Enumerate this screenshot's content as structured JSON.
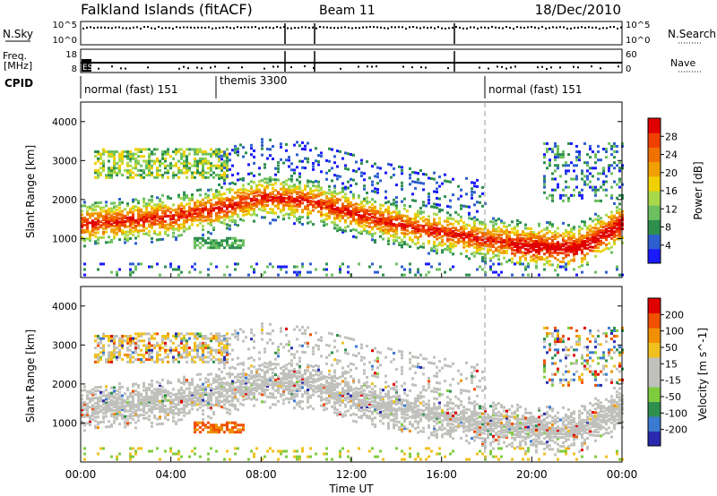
{
  "header": {
    "station": "Falkland Islands (fitACF)",
    "beam": "Beam 11",
    "date": "18/Dec/2010"
  },
  "strip_labels": {
    "nsky": "N.Sky",
    "nsky_top": "10^5",
    "nsky_bottom": "10^0",
    "nsearch": "N.Search",
    "nsearch_top": "10^5",
    "nsearch_bottom": "10^0",
    "freq": "Freq.",
    "freq_unit": "[MHz]",
    "freq_top": "18",
    "freq_bottom": "8",
    "nave": "Nave",
    "nave_top": "60",
    "nave_bottom": "0",
    "cpid": "CPID",
    "cpid_marker": "ES",
    "modes": [
      "normal (fast) 151",
      "themis 3300",
      "normal (fast) 151"
    ]
  },
  "colors": {
    "power_scale": [
      "#1a1aff",
      "#2d5fcf",
      "#2e8f4f",
      "#6cc060",
      "#a9d84a",
      "#f0d000",
      "#f0a000",
      "#f07000",
      "#f04000",
      "#e00000"
    ],
    "velocity_scale": [
      "#2a2ab0",
      "#3a7ad0",
      "#2e8f4f",
      "#80cc40",
      "#c0c0bc",
      "#c0c0bc",
      "#f0c020",
      "#f09000",
      "#f05000",
      "#e00000"
    ],
    "scatter_gray": "#c0c0bc"
  },
  "chart_data": [
    {
      "type": "heatmap",
      "title": "",
      "ylabel": "Slant Range [km]",
      "xlabel": "",
      "ylim": [
        0,
        4500
      ],
      "yticks": [
        "1000",
        "2000",
        "3000",
        "4000"
      ],
      "colorbar": {
        "label": "Power [dB]",
        "ticks": [
          "4",
          "8",
          "12",
          "16",
          "20",
          "24",
          "28"
        ]
      },
      "bands": [
        {
          "name": "main",
          "x": [
            0,
            2,
            4,
            6,
            8,
            10,
            12,
            14,
            16,
            18,
            20,
            22,
            24
          ],
          "center": [
            1400,
            1500,
            1600,
            1800,
            2100,
            2000,
            1700,
            1400,
            1200,
            1000,
            900,
            850,
            1500
          ]
        },
        {
          "name": "upper",
          "x": [
            1,
            3,
            5
          ],
          "center": [
            3100,
            3000,
            2900
          ]
        },
        {
          "name": "lower_patch",
          "x": [
            5,
            7
          ],
          "center": [
            950,
            950
          ]
        }
      ]
    },
    {
      "type": "heatmap",
      "title": "",
      "ylabel": "Slant Range [km]",
      "xlabel": "Time UT",
      "ylim": [
        0,
        4500
      ],
      "yticks": [
        "1000",
        "2000",
        "3000",
        "4000"
      ],
      "xticks": [
        "00:00",
        "04:00",
        "08:00",
        "12:00",
        "16:00",
        "20:00",
        "00:00"
      ],
      "colorbar": {
        "label": "Velocity [m s^-1]",
        "ticks": [
          "200",
          "100",
          "50",
          "15",
          "-15",
          "-50",
          "-100",
          "-200"
        ]
      }
    }
  ]
}
